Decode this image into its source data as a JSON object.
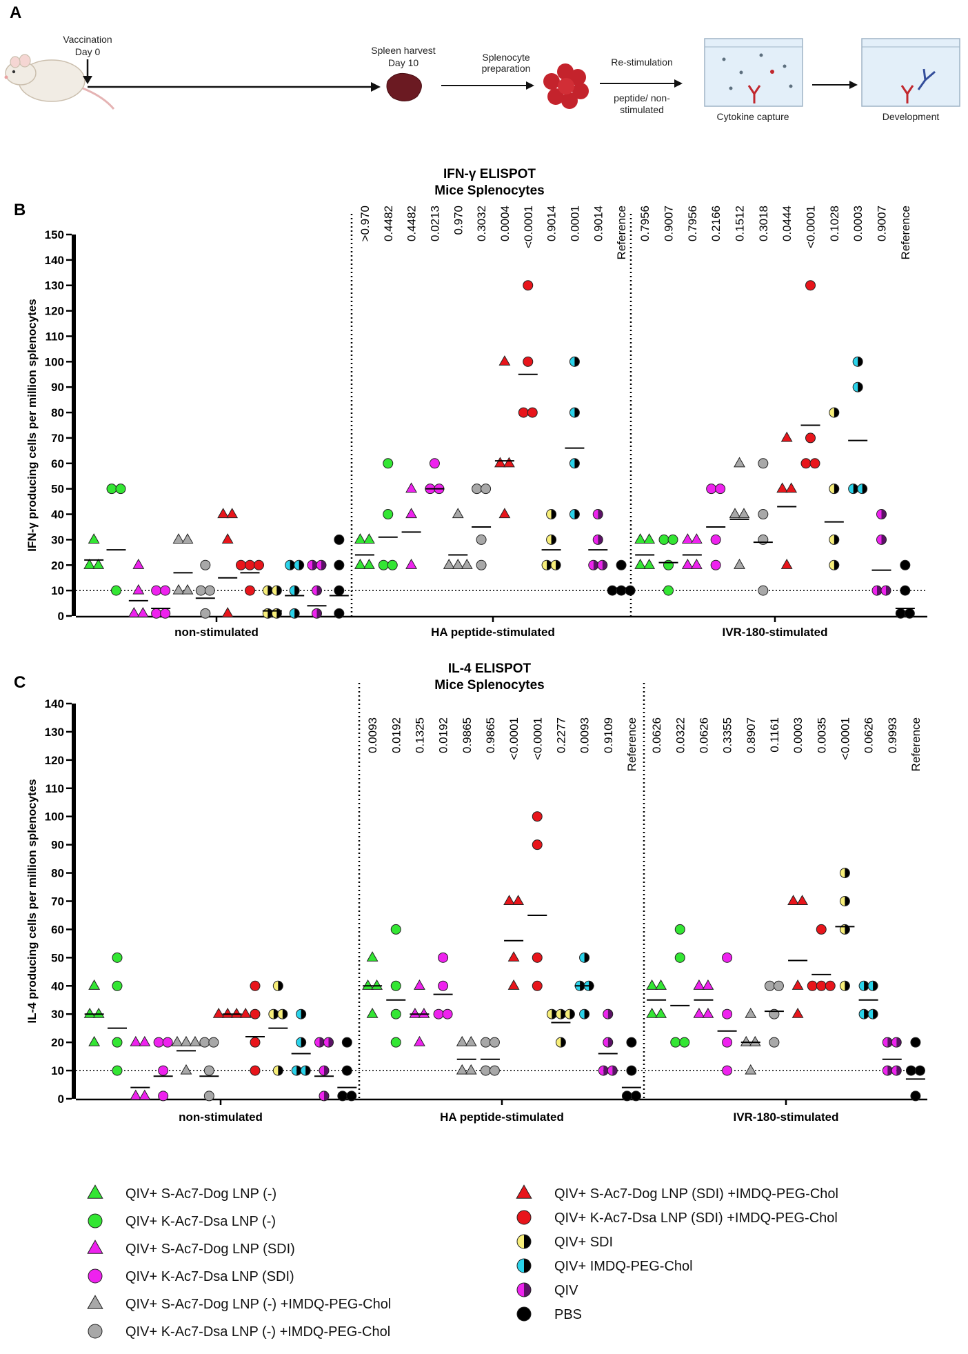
{
  "panels": {
    "a_label": "A",
    "b_label": "B",
    "c_label": "C"
  },
  "schematic": {
    "vaccination": "Vaccination",
    "vaccination_day": "Day 0",
    "spleen_harvest": "Spleen harvest",
    "spleen_day": "Day 10",
    "splenocyte": "Splenocyte",
    "preparation": "preparation",
    "restimulation": "Re-stimulation",
    "peptide": "peptide/ non-",
    "stimulated": "stimulated",
    "cytokine_capture": "Cytokine capture",
    "development": "Development"
  },
  "colors": {
    "green": "#33e633",
    "red": "#e8151b",
    "magenta": "#ee22ee",
    "gray": "#a8a8a8",
    "yellow": "#f7ee79",
    "cyan": "#2ad3ea",
    "purple": "#9b2fae",
    "black": "#000000"
  },
  "legend": [
    {
      "label": "QIV+ S-Ac7-Dog LNP (-)",
      "shape": "triangle",
      "color": "#33e633",
      "fill": "solid"
    },
    {
      "label": "QIV+ K-Ac7-Dsa LNP (-)",
      "shape": "circle",
      "color": "#33e633",
      "fill": "solid"
    },
    {
      "label": "QIV+ S-Ac7-Dog LNP (SDI)",
      "shape": "triangle",
      "color": "#ee22ee",
      "fill": "solid"
    },
    {
      "label": "QIV+ K-Ac7-Dsa LNP (SDI)",
      "shape": "circle",
      "color": "#ee22ee",
      "fill": "solid"
    },
    {
      "label": "QIV+ S-Ac7-Dog LNP (-) +IMDQ-PEG-Chol",
      "shape": "triangle",
      "color": "#a8a8a8",
      "fill": "solid"
    },
    {
      "label": "QIV+ K-Ac7-Dsa LNP (-) +IMDQ-PEG-Chol",
      "shape": "circle",
      "color": "#a8a8a8",
      "fill": "solid"
    },
    {
      "label": "QIV+ S-Ac7-Dog LNP (SDI) +IMDQ-PEG-Chol",
      "shape": "triangle",
      "color": "#e8151b",
      "fill": "solid"
    },
    {
      "label": "QIV+ K-Ac7-Dsa LNP (SDI) +IMDQ-PEG-Chol",
      "shape": "circle",
      "color": "#e8151b",
      "fill": "solid"
    },
    {
      "label": "QIV+ SDI",
      "shape": "circle",
      "color": "#f7ee79",
      "fill": "half"
    },
    {
      "label": "QIV+ IMDQ-PEG-Chol",
      "shape": "circle",
      "color": "#2ad3ea",
      "fill": "half"
    },
    {
      "label": "QIV",
      "shape": "circle",
      "color": "#ee22ee",
      "fill": "halfpurple"
    },
    {
      "label": "PBS",
      "shape": "circle",
      "color": "#000000",
      "fill": "solid"
    }
  ],
  "chart_data": [
    {
      "type": "scatter",
      "title": "IFN-γ ELISPOT",
      "subtitle": "Mice Splenocytes",
      "ylabel": "IFN-γ  producing cells per million splenocytes",
      "ylim": [
        0,
        150
      ],
      "yticks": [
        0,
        10,
        20,
        30,
        40,
        50,
        60,
        70,
        80,
        90,
        100,
        110,
        120,
        130,
        140,
        150
      ],
      "reference_line": 10,
      "groups": [
        "non-stimulated",
        "HA peptide-stimulated",
        "IVR-180-stimulated"
      ],
      "pvalues": [
        [],
        [
          ">0.970",
          "0.4482",
          "0.4482",
          "0.0213",
          "0.970",
          "0.3032",
          "0.0004",
          "<0.0001",
          "0.9014",
          "0.0001",
          "0.9014",
          "Reference"
        ],
        [
          "0.7956",
          "0.9007",
          "0.7956",
          "0.2166",
          "0.1512",
          "0.3018",
          "0.0444",
          "<0.0001",
          "0.1028",
          "0.0003",
          "0.9007",
          "Reference"
        ]
      ],
      "series": [
        {
          "name": "QIV+ S-Ac7-Dog LNP (-)",
          "groups": [
            [
              30,
              20,
              20
            ],
            [
              30,
              30,
              20,
              20
            ],
            [
              30,
              30,
              20,
              20
            ]
          ],
          "means": [
            22,
            24,
            24
          ]
        },
        {
          "name": "QIV+ K-Ac7-Dsa LNP (-)",
          "groups": [
            [
              50,
              50,
              10
            ],
            [
              60,
              40,
              20,
              20
            ],
            [
              30,
              30,
              20,
              10
            ]
          ],
          "means": [
            26,
            31,
            21
          ]
        },
        {
          "name": "QIV+ S-Ac7-Dog LNP (SDI)",
          "groups": [
            [
              20,
              10,
              1,
              1
            ],
            [
              50,
              40,
              20
            ],
            [
              30,
              30,
              20,
              20
            ]
          ],
          "means": [
            6,
            33,
            24
          ]
        },
        {
          "name": "QIV+ K-Ac7-Dsa LNP (SDI)",
          "groups": [
            [
              10,
              10,
              1,
              1
            ],
            [
              60,
              50,
              50
            ],
            [
              50,
              50,
              30,
              20
            ]
          ],
          "means": [
            3,
            50,
            35
          ]
        },
        {
          "name": "QIV+ S-Ac7-Dog LNP (-) +IMDQ-PEG-Chol",
          "groups": [
            [
              30,
              30,
              10,
              10
            ],
            [
              40,
              20,
              20,
              20
            ],
            [
              60,
              40,
              40,
              20
            ]
          ],
          "means": [
            17,
            24,
            38
          ]
        },
        {
          "name": "QIV+ K-Ac7-Dsa LNP (-) +IMDQ-PEG-Chol",
          "groups": [
            [
              20,
              10,
              10,
              1
            ],
            [
              50,
              50,
              30,
              20
            ],
            [
              60,
              40,
              30,
              10
            ]
          ],
          "means": [
            7,
            35,
            29
          ]
        },
        {
          "name": "QIV+ S-Ac7-Dog LNP (SDI) +IMDQ-PEG-Chol",
          "groups": [
            [
              40,
              40,
              30,
              1
            ],
            [
              100,
              60,
              60,
              40
            ],
            [
              70,
              50,
              50,
              20
            ]
          ],
          "means": [
            15,
            61,
            43
          ]
        },
        {
          "name": "QIV+ K-Ac7-Dsa LNP (SDI) +IMDQ-PEG-Chol",
          "groups": [
            [
              20,
              20,
              20,
              10
            ],
            [
              130,
              100,
              80,
              80
            ],
            [
              130,
              70,
              60,
              60
            ]
          ],
          "means": [
            17,
            95,
            75
          ]
        },
        {
          "name": "QIV+ SDI",
          "groups": [
            [
              10,
              10,
              1,
              1
            ],
            [
              40,
              30,
              20,
              20
            ],
            [
              80,
              50,
              30,
              20
            ]
          ],
          "means": [
            2,
            26,
            37
          ]
        },
        {
          "name": "QIV+ IMDQ-PEG-Chol",
          "groups": [
            [
              20,
              20,
              10,
              1
            ],
            [
              100,
              80,
              60,
              40
            ],
            [
              100,
              90,
              50,
              50
            ]
          ],
          "means": [
            8,
            66,
            69
          ]
        },
        {
          "name": "QIV",
          "groups": [
            [
              20,
              20,
              10,
              1
            ],
            [
              40,
              30,
              20,
              20
            ],
            [
              40,
              30,
              10,
              10
            ]
          ],
          "means": [
            4,
            26,
            18
          ]
        },
        {
          "name": "PBS",
          "groups": [
            [
              30,
              20,
              10,
              1
            ],
            [
              20,
              10,
              10,
              10
            ],
            [
              20,
              10,
              1,
              1
            ]
          ],
          "means": [
            8,
            11,
            3
          ]
        }
      ]
    },
    {
      "type": "scatter",
      "title": "IL-4 ELISPOT",
      "subtitle": "Mice Splenocytes",
      "ylabel": "IL-4 producing cells per million splenocytes",
      "ylim": [
        0,
        140
      ],
      "yticks": [
        0,
        10,
        20,
        30,
        40,
        50,
        60,
        70,
        80,
        90,
        100,
        110,
        120,
        130,
        140
      ],
      "reference_line": 10,
      "groups": [
        "non-stimulated",
        "HA peptide-stimulated",
        "IVR-180-stimulated"
      ],
      "pvalues": [
        [],
        [
          "0.0093",
          "0.0192",
          "0.1325",
          "0.0192",
          "0.9865",
          "0.9865",
          "<0.0001",
          "<0.0001",
          "0.2277",
          "0.0093",
          "0.9109",
          "Reference"
        ],
        [
          "0.0626",
          "0.0322",
          "0.0626",
          "0.3355",
          "0.8907",
          "0.1161",
          "0.0003",
          "0.0035",
          "<0.0001",
          "0.0626",
          "0.9993",
          "Reference"
        ]
      ],
      "series": [
        {
          "name": "QIV+ S-Ac7-Dog LNP (-)",
          "groups": [
            [
              40,
              30,
              30,
              20
            ],
            [
              50,
              40,
              40,
              30
            ],
            [
              40,
              40,
              30,
              30
            ]
          ],
          "means": [
            30,
            40,
            35
          ]
        },
        {
          "name": "QIV+ K-Ac7-Dsa LNP (-)",
          "groups": [
            [
              50,
              40,
              20,
              10
            ],
            [
              60,
              40,
              30,
              20
            ],
            [
              60,
              50,
              20,
              20
            ]
          ],
          "means": [
            25,
            35,
            33
          ]
        },
        {
          "name": "QIV+ S-Ac7-Dog LNP (SDI)",
          "groups": [
            [
              20,
              20,
              1,
              1
            ],
            [
              40,
              30,
              30,
              20
            ],
            [
              40,
              40,
              30,
              30
            ]
          ],
          "means": [
            4,
            30,
            35
          ]
        },
        {
          "name": "QIV+ K-Ac7-Dsa LNP (SDI)",
          "groups": [
            [
              20,
              20,
              10,
              1
            ],
            [
              50,
              40,
              30,
              30
            ],
            [
              50,
              30,
              20,
              10
            ]
          ],
          "means": [
            8,
            37,
            24
          ]
        },
        {
          "name": "QIV+ S-Ac7-Dog LNP (-) +IMDQ-PEG-Chol",
          "groups": [
            [
              20,
              20,
              20,
              10
            ],
            [
              20,
              20,
              10,
              10
            ],
            [
              30,
              20,
              20,
              10
            ]
          ],
          "means": [
            17,
            14,
            20
          ]
        },
        {
          "name": "QIV+ K-Ac7-Dsa LNP (-) +IMDQ-PEG-Chol",
          "groups": [
            [
              20,
              20,
              10,
              1
            ],
            [
              20,
              20,
              10,
              10
            ],
            [
              40,
              40,
              30,
              20
            ]
          ],
          "means": [
            8,
            14,
            31
          ]
        },
        {
          "name": "QIV+ S-Ac7-Dog LNP (SDI) +IMDQ-PEG-Chol",
          "groups": [
            [
              30,
              30,
              30,
              30
            ],
            [
              70,
              70,
              50,
              40
            ],
            [
              70,
              70,
              40,
              30
            ]
          ],
          "means": [
            30,
            56,
            49
          ]
        },
        {
          "name": "QIV+ K-Ac7-Dsa LNP (SDI) +IMDQ-PEG-Chol",
          "groups": [
            [
              40,
              30,
              20,
              10
            ],
            [
              100,
              90,
              50,
              40
            ],
            [
              60,
              40,
              40,
              40
            ]
          ],
          "means": [
            22,
            65,
            44
          ]
        },
        {
          "name": "QIV+ SDI",
          "groups": [
            [
              40,
              30,
              30,
              10
            ],
            [
              30,
              30,
              30,
              20
            ],
            [
              80,
              70,
              60,
              40
            ]
          ],
          "means": [
            25,
            27,
            61
          ]
        },
        {
          "name": "QIV+ IMDQ-PEG-Chol",
          "groups": [
            [
              30,
              20,
              10,
              10
            ],
            [
              50,
              40,
              40,
              30
            ],
            [
              40,
              40,
              30,
              30
            ]
          ],
          "means": [
            16,
            40,
            35
          ]
        },
        {
          "name": "QIV",
          "groups": [
            [
              20,
              20,
              10,
              1
            ],
            [
              30,
              20,
              10,
              10
            ],
            [
              20,
              20,
              10,
              10
            ]
          ],
          "means": [
            8,
            16,
            14
          ]
        },
        {
          "name": "PBS",
          "groups": [
            [
              20,
              10,
              1,
              1
            ],
            [
              20,
              10,
              1,
              1
            ],
            [
              20,
              10,
              10,
              1
            ]
          ],
          "means": [
            4,
            4,
            7
          ]
        }
      ]
    }
  ]
}
